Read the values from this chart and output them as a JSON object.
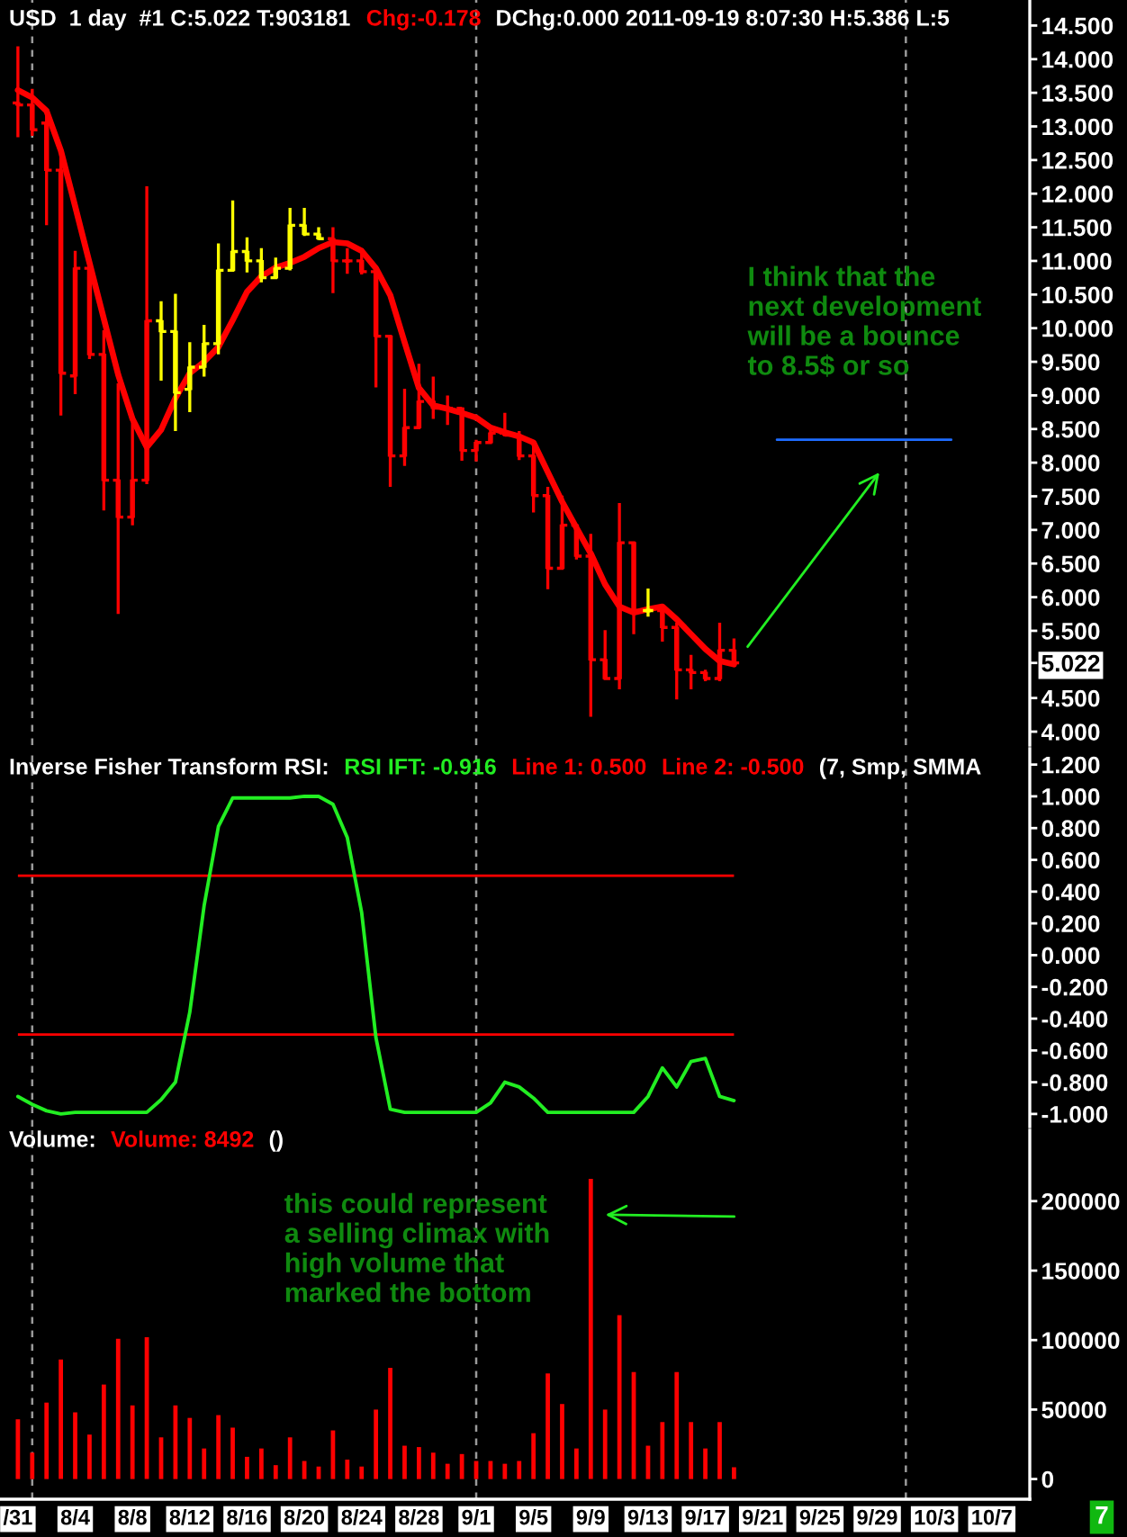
{
  "chart_data": [
    {
      "type": "candlestick",
      "title": "USD  1 day  #1 C:5.022 T:903181",
      "subtitle": "Chg:-0.178",
      "x": [
        "2011-07-31",
        "2011-08-01",
        "2011-08-02",
        "2011-08-03",
        "2011-08-04",
        "2011-08-05",
        "2011-08-06",
        "2011-08-07",
        "2011-08-08",
        "2011-08-09",
        "2011-08-10",
        "2011-08-11",
        "2011-08-12",
        "2011-08-13",
        "2011-08-14",
        "2011-08-15",
        "2011-08-16",
        "2011-08-17",
        "2011-08-18",
        "2011-08-19",
        "2011-08-20",
        "2011-08-21",
        "2011-08-22",
        "2011-08-23",
        "2011-08-24",
        "2011-08-25",
        "2011-08-26",
        "2011-08-27",
        "2011-08-28",
        "2011-08-29",
        "2011-08-30",
        "2011-08-31",
        "2011-09-01",
        "2011-09-02",
        "2011-09-03",
        "2011-09-04",
        "2011-09-05",
        "2011-09-06",
        "2011-09-07",
        "2011-09-08",
        "2011-09-09",
        "2011-09-10",
        "2011-09-11",
        "2011-09-12",
        "2011-09-13",
        "2011-09-14",
        "2011-09-15",
        "2011-09-16",
        "2011-09-17",
        "2011-09-18",
        "2011-09-19"
      ],
      "ohlc": [
        [
          13.35,
          14.19,
          12.84,
          13.32
        ],
        [
          13.32,
          13.56,
          12.86,
          12.95
        ],
        [
          13.05,
          13.21,
          11.53,
          12.35
        ],
        [
          12.35,
          12.6,
          8.7,
          9.33
        ],
        [
          9.29,
          11.15,
          9.02,
          10.89
        ],
        [
          10.89,
          10.93,
          9.54,
          9.61
        ],
        [
          9.61,
          9.97,
          7.29,
          7.74
        ],
        [
          7.74,
          9.18,
          5.75,
          7.19
        ],
        [
          7.19,
          8.65,
          7.07,
          7.74
        ],
        [
          7.74,
          12.11,
          7.68,
          10.11
        ],
        [
          10.11,
          10.4,
          9.22,
          9.95
        ],
        [
          9.95,
          10.51,
          8.47,
          9.04
        ],
        [
          9.09,
          9.79,
          8.75,
          9.42
        ],
        [
          9.42,
          10.05,
          9.28,
          9.77
        ],
        [
          9.77,
          11.26,
          9.61,
          10.86
        ],
        [
          10.86,
          11.9,
          10.84,
          11.14
        ],
        [
          11.14,
          11.35,
          10.83,
          11.0
        ],
        [
          11.0,
          11.19,
          10.68,
          10.75
        ],
        [
          10.75,
          11.05,
          10.74,
          10.89
        ],
        [
          10.89,
          11.79,
          10.86,
          11.53
        ],
        [
          11.53,
          11.79,
          11.37,
          11.4
        ],
        [
          11.4,
          11.5,
          11.31,
          11.33
        ],
        [
          11.33,
          11.5,
          10.52,
          11.0
        ],
        [
          11.0,
          11.19,
          10.81,
          11.0
        ],
        [
          11.0,
          11.18,
          10.8,
          10.84
        ],
        [
          10.84,
          10.93,
          9.12,
          9.88
        ],
        [
          9.88,
          9.88,
          7.64,
          8.1
        ],
        [
          8.1,
          9.1,
          7.95,
          8.52
        ],
        [
          8.52,
          9.47,
          8.52,
          8.91
        ],
        [
          8.91,
          9.28,
          8.65,
          8.81
        ],
        [
          8.81,
          9.0,
          8.56,
          8.81
        ],
        [
          8.81,
          8.82,
          8.03,
          8.18
        ],
        [
          8.18,
          8.34,
          8.02,
          8.3
        ],
        [
          8.3,
          8.54,
          8.28,
          8.44
        ],
        [
          8.44,
          8.74,
          8.39,
          8.41
        ],
        [
          8.41,
          8.47,
          8.04,
          8.1
        ],
        [
          8.1,
          8.3,
          7.26,
          7.51
        ],
        [
          7.51,
          7.64,
          6.12,
          6.43
        ],
        [
          6.43,
          7.51,
          6.41,
          7.07
        ],
        [
          7.07,
          7.09,
          6.56,
          6.61
        ],
        [
          6.61,
          6.94,
          4.22,
          5.07
        ],
        [
          5.07,
          5.51,
          4.79,
          4.79
        ],
        [
          4.79,
          7.4,
          4.63,
          6.81
        ],
        [
          6.81,
          6.81,
          5.45,
          5.8
        ],
        [
          5.8,
          6.13,
          5.71,
          5.8
        ],
        [
          5.8,
          5.86,
          5.34,
          5.55
        ],
        [
          5.55,
          5.62,
          4.48,
          4.92
        ],
        [
          4.92,
          5.14,
          4.63,
          4.88
        ],
        [
          4.88,
          4.92,
          4.75,
          4.79
        ],
        [
          4.79,
          5.62,
          4.75,
          5.21
        ],
        [
          5.21,
          5.386,
          5.0,
          5.022
        ]
      ],
      "colors": [
        "#ff0000",
        "#ff0000",
        "#ff0000",
        "#ff0000",
        "#ff0000",
        "#ff0000",
        "#ff0000",
        "#ff0000",
        "#ff0000",
        "#ff0000",
        "#ffff00",
        "#ffff00",
        "#ffff00",
        "#ffff00",
        "#ffff00",
        "#ffff00",
        "#ffff00",
        "#ffff00",
        "#ffff00",
        "#ffff00",
        "#ffff00",
        "#ffff00",
        "#ff0000",
        "#ff0000",
        "#ff0000",
        "#ff0000",
        "#ff0000",
        "#ff0000",
        "#ff0000",
        "#ff0000",
        "#ff0000",
        "#ff0000",
        "#ff0000",
        "#ff0000",
        "#ff0000",
        "#ff0000",
        "#ff0000",
        "#ff0000",
        "#ff0000",
        "#ff0000",
        "#ff0000",
        "#ff0000",
        "#ff0000",
        "#ff0000",
        "#ffff00",
        "#ff0000",
        "#ff0000",
        "#ff0000",
        "#ff0000",
        "#ff0000",
        "#ff0000"
      ],
      "series": [
        {
          "type": "line",
          "color": "#ff0000",
          "values": [
            13.54,
            13.43,
            13.23,
            12.64,
            11.81,
            10.97,
            10.14,
            9.31,
            8.65,
            8.23,
            8.49,
            8.96,
            9.33,
            9.5,
            9.72,
            10.12,
            10.54,
            10.77,
            10.9,
            10.97,
            11.06,
            11.19,
            11.28,
            11.26,
            11.15,
            10.89,
            10.49,
            9.79,
            9.11,
            8.85,
            8.8,
            8.74,
            8.67,
            8.52,
            8.45,
            8.39,
            8.3,
            7.86,
            7.42,
            7.03,
            6.65,
            6.19,
            5.86,
            5.77,
            5.82,
            5.86,
            5.67,
            5.45,
            5.23,
            5.05,
            5.0
          ]
        },
        {
          "type": "line",
          "color": "#1e6cff",
          "x": [
            "2011-09-22",
            "2011-10-04T04:00"
          ],
          "values": [
            8.34,
            8.34
          ]
        }
      ],
      "xlim": [
        "2011-07-29T18:00",
        "2011-10-09T15:40"
      ],
      "ylim": [
        3.8,
        14.88
      ],
      "yticks": [
        {
          "value": 4,
          "label": "4.000"
        },
        {
          "value": 4.5,
          "label": "4.500"
        },
        5.022,
        {
          "value": 5.5,
          "label": "5.500"
        },
        {
          "value": 6,
          "label": "6.000"
        },
        {
          "value": 6.5,
          "label": "6.500"
        },
        {
          "value": 7,
          "label": "7.000"
        },
        {
          "value": 7.5,
          "label": "7.500"
        },
        {
          "value": 8,
          "label": "8.000"
        },
        {
          "value": 8.5,
          "label": "8.500"
        },
        {
          "value": 9,
          "label": "9.000"
        },
        {
          "value": 9.5,
          "label": "9.500"
        },
        {
          "value": 10,
          "label": "10.000"
        },
        {
          "value": 10.5,
          "label": "10.500"
        },
        {
          "value": 11,
          "label": "11.000"
        },
        {
          "value": 11.5,
          "label": "11.500"
        },
        {
          "value": 12,
          "label": "12.000"
        },
        {
          "value": 12.5,
          "label": "12.500"
        },
        {
          "value": 13,
          "label": "13.000"
        },
        {
          "value": 13.5,
          "label": "13.500"
        },
        {
          "value": 14,
          "label": "14.000"
        },
        {
          "value": 14.5,
          "label": "14.500"
        }
      ],
      "tick_labels": "y",
      "ref_lines": [
        {
          "axis": "x",
          "value": "2011-08-01",
          "color": "#9a9a9a",
          "line_style": "dashed"
        },
        {
          "axis": "x",
          "value": "2011-09-01",
          "color": "#9a9a9a",
          "line_style": "dashed"
        },
        {
          "axis": "x",
          "value": "2011-10-01",
          "color": "#9a9a9a",
          "line_style": "dashed"
        }
      ],
      "annotations": [
        "DChg:0.000 2011-09-19 8:07:30 H:5.386 L:5",
        "I think that the\nnext development\nwill be a bounce\nto 8.5$ or so"
      ]
    },
    {
      "type": "line",
      "title": "Inverse Fisher Transform RSI:",
      "x": [
        "2011-07-31",
        "2011-08-01",
        "2011-08-02",
        "2011-08-03",
        "2011-08-04",
        "2011-08-05",
        "2011-08-06",
        "2011-08-07",
        "2011-08-08",
        "2011-08-09",
        "2011-08-10",
        "2011-08-11",
        "2011-08-12",
        "2011-08-13",
        "2011-08-14",
        "2011-08-15",
        "2011-08-16",
        "2011-08-17",
        "2011-08-18",
        "2011-08-19",
        "2011-08-20",
        "2011-08-21",
        "2011-08-22",
        "2011-08-23",
        "2011-08-24",
        "2011-08-25",
        "2011-08-26",
        "2011-08-27",
        "2011-08-28",
        "2011-08-29",
        "2011-08-30",
        "2011-08-31",
        "2011-09-01",
        "2011-09-02",
        "2011-09-03",
        "2011-09-04",
        "2011-09-05",
        "2011-09-06",
        "2011-09-07",
        "2011-09-08",
        "2011-09-09",
        "2011-09-10",
        "2011-09-11",
        "2011-09-12",
        "2011-09-13",
        "2011-09-14",
        "2011-09-15",
        "2011-09-16",
        "2011-09-17",
        "2011-09-18",
        "2011-09-19"
      ],
      "series": [
        {
          "name": "RSI IFT: -0.916",
          "color": "#22ee22",
          "values": [
            -0.89,
            -0.94,
            -0.98,
            -1.0,
            -0.99,
            -0.99,
            -0.99,
            -0.99,
            -0.99,
            -0.99,
            -0.91,
            -0.8,
            -0.36,
            0.31,
            0.81,
            0.99,
            0.99,
            0.99,
            0.99,
            0.99,
            1.0,
            1.0,
            0.95,
            0.74,
            0.27,
            -0.52,
            -0.97,
            -0.99,
            -0.99,
            -0.99,
            -0.99,
            -0.99,
            -0.99,
            -0.93,
            -0.8,
            -0.83,
            -0.9,
            -0.99,
            -0.99,
            -0.99,
            -0.99,
            -0.99,
            -0.99,
            -0.99,
            -0.89,
            -0.71,
            -0.83,
            -0.67,
            -0.65,
            -0.89,
            -0.916
          ]
        }
      ],
      "xlim": [
        "2011-07-29T18:00",
        "2011-10-09T15:40"
      ],
      "ylim": [
        -1.08,
        1.3
      ],
      "yticks": [
        {
          "value": -1,
          "label": "-1.000"
        },
        {
          "value": -0.8,
          "label": "-0.800"
        },
        {
          "value": -0.6,
          "label": "-0.600"
        },
        {
          "value": -0.4,
          "label": "-0.400"
        },
        {
          "value": -0.2,
          "label": "-0.200"
        },
        {
          "value": 0,
          "label": "0.000"
        },
        {
          "value": 0.2,
          "label": "0.200"
        },
        {
          "value": 0.4,
          "label": "0.400"
        },
        {
          "value": 0.6,
          "label": "0.600"
        },
        {
          "value": 0.8,
          "label": "0.800"
        },
        {
          "value": 1,
          "label": "1.000"
        },
        {
          "value": 1.2,
          "label": "1.200"
        }
      ],
      "tick_labels": "y",
      "ref_lines": [
        {
          "axis": "y",
          "value": 0.5,
          "label": "Line 1: 0.500",
          "color": "#ff0000"
        },
        {
          "axis": "y",
          "value": -0.5,
          "label": "Line 2: -0.500",
          "color": "#ff0000"
        },
        {
          "axis": "x",
          "value": "2011-08-01",
          "color": "#9a9a9a",
          "line_style": "dashed"
        },
        {
          "axis": "x",
          "value": "2011-09-01",
          "color": "#9a9a9a",
          "line_style": "dashed"
        },
        {
          "axis": "x",
          "value": "2011-10-01",
          "color": "#9a9a9a",
          "line_style": "dashed"
        }
      ],
      "annotations": [
        "(7, Smp, SMMA"
      ]
    },
    {
      "type": "bar",
      "title": "Volume:",
      "x": [
        "2011-07-31",
        "2011-08-01",
        "2011-08-02",
        "2011-08-03",
        "2011-08-04",
        "2011-08-05",
        "2011-08-06",
        "2011-08-07",
        "2011-08-08",
        "2011-08-09",
        "2011-08-10",
        "2011-08-11",
        "2011-08-12",
        "2011-08-13",
        "2011-08-14",
        "2011-08-15",
        "2011-08-16",
        "2011-08-17",
        "2011-08-18",
        "2011-08-19",
        "2011-08-20",
        "2011-08-21",
        "2011-08-22",
        "2011-08-23",
        "2011-08-24",
        "2011-08-25",
        "2011-08-26",
        "2011-08-27",
        "2011-08-28",
        "2011-08-29",
        "2011-08-30",
        "2011-08-31",
        "2011-09-01",
        "2011-09-02",
        "2011-09-03",
        "2011-09-04",
        "2011-09-05",
        "2011-09-06",
        "2011-09-07",
        "2011-09-08",
        "2011-09-09",
        "2011-09-10",
        "2011-09-11",
        "2011-09-12",
        "2011-09-13",
        "2011-09-14",
        "2011-09-15",
        "2011-09-16",
        "2011-09-17",
        "2011-09-18",
        "2011-09-19"
      ],
      "series": [
        {
          "name": "Volume: 8492",
          "color": "#ff0000",
          "values": [
            43000,
            19000,
            55000,
            86000,
            48000,
            32000,
            68000,
            101000,
            53000,
            102000,
            30000,
            53000,
            44000,
            22000,
            46000,
            37000,
            16000,
            22000,
            10000,
            30000,
            13000,
            9000,
            35000,
            14000,
            9000,
            50000,
            80000,
            24000,
            23000,
            19000,
            11000,
            18000,
            13000,
            13000,
            11000,
            13000,
            33000,
            76000,
            54000,
            22000,
            216000,
            50000,
            118000,
            77000,
            24000,
            41000,
            77000,
            41000,
            22000,
            41000,
            8492
          ]
        }
      ],
      "xlim": [
        "2011-07-29T18:00",
        "2011-10-09T15:40"
      ],
      "ylim": [
        -14500,
        251000
      ],
      "yticks": [
        0,
        50000,
        100000,
        150000,
        200000
      ],
      "xticks": [
        {
          "value": "2011-07-31",
          "label": "/31"
        },
        {
          "value": "2011-08-04",
          "label": "8/4"
        },
        {
          "value": "2011-08-08",
          "label": "8/8"
        },
        {
          "value": "2011-08-12",
          "label": "8/12"
        },
        {
          "value": "2011-08-16",
          "label": "8/16"
        },
        {
          "value": "2011-08-20",
          "label": "8/20"
        },
        {
          "value": "2011-08-24",
          "label": "8/24"
        },
        {
          "value": "2011-08-28",
          "label": "8/28"
        },
        {
          "value": "2011-09-01",
          "label": "9/1"
        },
        {
          "value": "2011-09-05",
          "label": "9/5"
        },
        {
          "value": "2011-09-09",
          "label": "9/9"
        },
        {
          "value": "2011-09-13",
          "label": "9/13"
        },
        {
          "value": "2011-09-17",
          "label": "9/17"
        },
        {
          "value": "2011-09-21",
          "label": "9/21"
        },
        {
          "value": "2011-09-25",
          "label": "9/25"
        },
        {
          "value": "2011-09-29",
          "label": "9/29"
        },
        {
          "value": "2011-10-03",
          "label": "10/3"
        },
        {
          "value": "2011-10-07",
          "label": "10/7"
        }
      ],
      "ref_lines": [
        {
          "axis": "x",
          "value": "2011-08-01",
          "color": "#9a9a9a",
          "line_style": "dashed"
        },
        {
          "axis": "x",
          "value": "2011-09-01",
          "color": "#9a9a9a",
          "line_style": "dashed"
        },
        {
          "axis": "x",
          "value": "2011-10-01",
          "color": "#9a9a9a",
          "line_style": "dashed"
        }
      ],
      "annotations": [
        "()",
        "this could represent\na selling climax with\nhigh volume that\nmarked the bottom",
        "7"
      ]
    }
  ]
}
